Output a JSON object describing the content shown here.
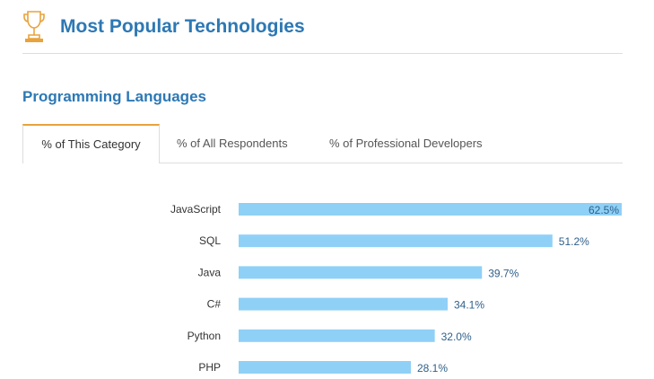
{
  "header": {
    "title": "Most Popular Technologies",
    "icon": "trophy-icon",
    "icon_color": "#e8a33d"
  },
  "section": {
    "title": "Programming Languages"
  },
  "tabs": [
    {
      "label": "% of This Category",
      "active": true
    },
    {
      "label": "% of All Respondents",
      "active": false
    },
    {
      "label": "% of Professional Developers",
      "active": false
    }
  ],
  "colors": {
    "title": "#2d78b4",
    "bar": "#8fd0f7",
    "tab_accent": "#e8a33d",
    "value_label": "#2e5f8a"
  },
  "chart_data": {
    "type": "bar",
    "orientation": "horizontal",
    "categories": [
      "JavaScript",
      "SQL",
      "Java",
      "C#",
      "Python",
      "PHP"
    ],
    "values": [
      62.5,
      51.2,
      39.7,
      34.1,
      32.0,
      28.1
    ],
    "value_labels": [
      "62.5%",
      "51.2%",
      "39.7%",
      "34.1%",
      "32.0%",
      "28.1%"
    ],
    "xlim": [
      0,
      62.5
    ],
    "grid": false,
    "legend": "none"
  }
}
